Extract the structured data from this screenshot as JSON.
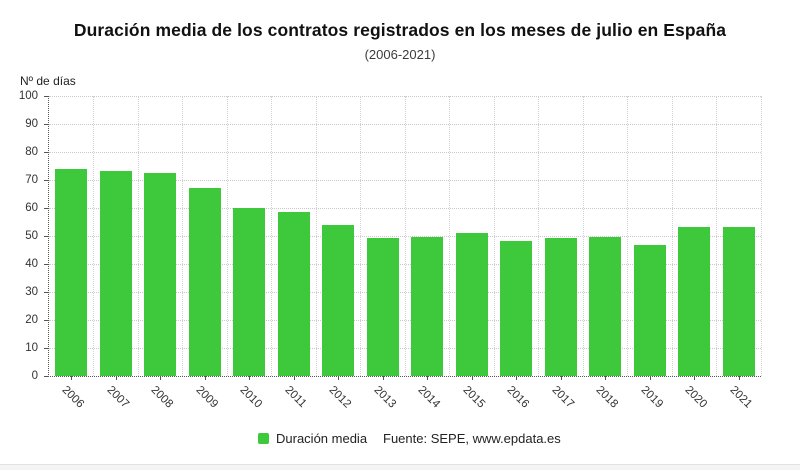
{
  "chart_data": {
    "type": "bar",
    "title": "Duración media de los contratos registrados en los meses de julio en España",
    "subtitle": "(2006-2021)",
    "ylabel": "Nº de días",
    "xlabel": "",
    "ylim": [
      0,
      100
    ],
    "ytick_interval": 10,
    "grid": true,
    "legend_position": "bottom",
    "categories": [
      "2006",
      "2007",
      "2008",
      "2009",
      "2010",
      "2011",
      "2012",
      "2013",
      "2014",
      "2015",
      "2016",
      "2017",
      "2018",
      "2019",
      "2020",
      "2021"
    ],
    "series": [
      {
        "name": "Duración media",
        "values": [
          73.9,
          73.2,
          72.5,
          67.2,
          59.9,
          58.7,
          54.0,
          49.4,
          49.8,
          51.2,
          48.1,
          49.3,
          49.7,
          46.8,
          53.3,
          53.1
        ]
      }
    ],
    "bar_color": "#3ec93c"
  },
  "legend": {
    "label": "Duración media",
    "swatch_color": "#3ec93c"
  },
  "source": {
    "text": "Fuente: SEPE, www.epdata.es"
  },
  "colors": {
    "accent_green": "#3ec93c",
    "title_text": "#111111",
    "axis_text": "#333333",
    "gridline": "#c9c9c9",
    "axis_line": "#555555",
    "footer_bg": "#f4f4f4"
  }
}
